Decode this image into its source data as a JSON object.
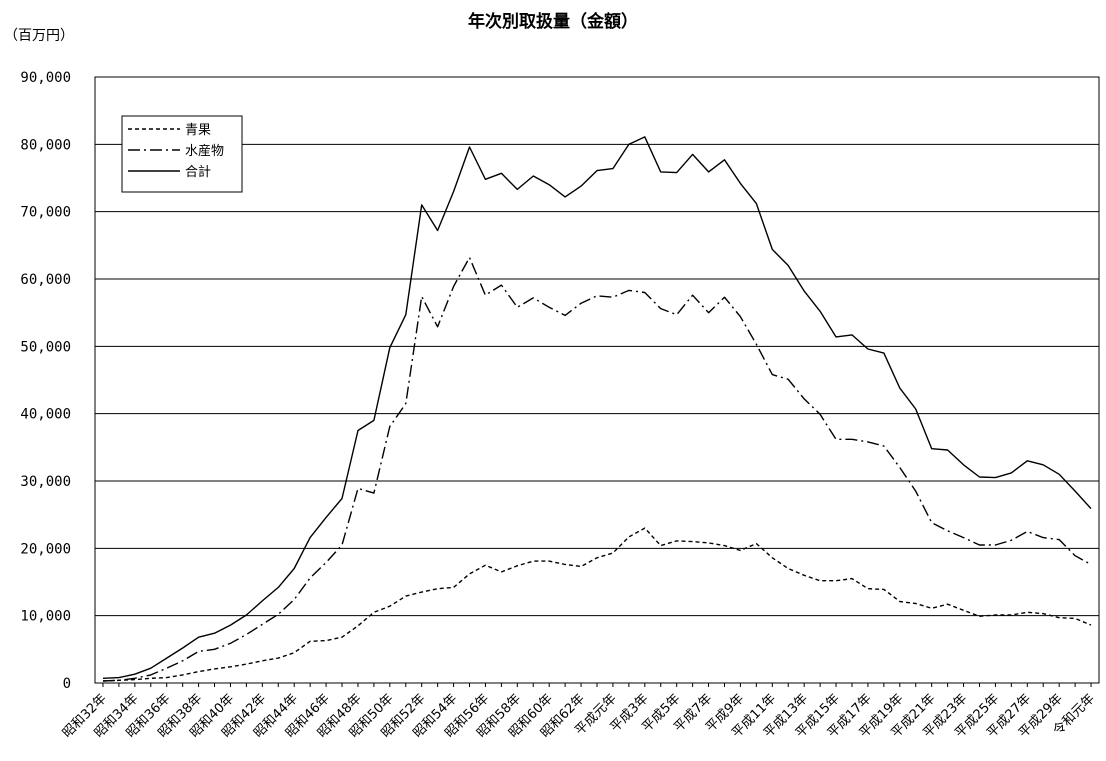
{
  "chart_data": {
    "type": "line",
    "title": "年次別取扱量（金額）",
    "unit_label": "（百万円）",
    "xlabel": "",
    "ylabel": "",
    "ylim": [
      0,
      90000
    ],
    "ytick_values": [
      0,
      10000,
      20000,
      30000,
      40000,
      50000,
      60000,
      70000,
      80000,
      90000
    ],
    "ytick_labels": [
      "0",
      "10,000",
      "20,000",
      "30,000",
      "40,000",
      "50,000",
      "60,000",
      "70,000",
      "80,000",
      "90,000"
    ],
    "grid": true,
    "legend_position": "top-left",
    "categories": [
      "昭和32年",
      "昭和33年",
      "昭和34年",
      "昭和35年",
      "昭和36年",
      "昭和37年",
      "昭和38年",
      "昭和39年",
      "昭和40年",
      "昭和41年",
      "昭和42年",
      "昭和43年",
      "昭和44年",
      "昭和45年",
      "昭和46年",
      "昭和47年",
      "昭和48年",
      "昭和49年",
      "昭和50年",
      "昭和51年",
      "昭和52年",
      "昭和53年",
      "昭和54年",
      "昭和55年",
      "昭和56年",
      "昭和57年",
      "昭和58年",
      "昭和59年",
      "昭和60年",
      "昭和61年",
      "昭和62年",
      "昭和63年",
      "平成元年",
      "平成2年",
      "平成3年",
      "平成4年",
      "平成5年",
      "平成6年",
      "平成7年",
      "平成8年",
      "平成9年",
      "平成10年",
      "平成11年",
      "平成12年",
      "平成13年",
      "平成14年",
      "平成15年",
      "平成16年",
      "平成17年",
      "平成18年",
      "平成19年",
      "平成20年",
      "平成21年",
      "平成22年",
      "平成23年",
      "平成24年",
      "平成25年",
      "平成26年",
      "平成27年",
      "平成28年",
      "平成29年",
      "平成30年",
      "令和元年"
    ],
    "xtick_labels": [
      "昭和32年",
      "",
      "昭和34年",
      "",
      "昭和36年",
      "",
      "昭和38年",
      "",
      "昭和40年",
      "",
      "昭和42年",
      "",
      "昭和44年",
      "",
      "昭和46年",
      "",
      "昭和48年",
      "",
      "昭和50年",
      "",
      "昭和52年",
      "",
      "昭和54年",
      "",
      "昭和56年",
      "",
      "昭和58年",
      "",
      "昭和60年",
      "",
      "昭和62年",
      "",
      "平成元年",
      "",
      "平成3年",
      "",
      "平成5年",
      "",
      "平成7年",
      "",
      "平成9年",
      "",
      "平成11年",
      "",
      "平成13年",
      "",
      "平成15年",
      "",
      "平成17年",
      "",
      "平成19年",
      "",
      "平成21年",
      "",
      "平成23年",
      "",
      "平成25年",
      "",
      "平成27年",
      "",
      "平成29年",
      "",
      "令和元年"
    ],
    "series": [
      {
        "name": "青果",
        "style": "dashed",
        "values": [
          300,
          400,
          500,
          700,
          800,
          1200,
          1700,
          2100,
          2400,
          2800,
          3300,
          3700,
          4500,
          6200,
          6300,
          6800,
          8500,
          10500,
          11400,
          12900,
          13500,
          14000,
          14200,
          16200,
          17500,
          16500,
          17400,
          18100,
          18100,
          17600,
          17300,
          18600,
          19300,
          21700,
          23000,
          20400,
          21100,
          21000,
          20800,
          20400,
          19700,
          20700,
          18600,
          17000,
          16000,
          15200,
          15200,
          15500,
          14000,
          13900,
          12100,
          11800,
          11100,
          11700,
          10800,
          9900,
          10100,
          10100,
          10500,
          10300,
          9700,
          9600,
          8600
        ]
      },
      {
        "name": "水産物",
        "style": "dashdot",
        "values": [
          300,
          400,
          700,
          1200,
          2200,
          3300,
          4700,
          5000,
          5900,
          7200,
          8700,
          10200,
          12400,
          15600,
          17900,
          20500,
          28900,
          28200,
          38100,
          41500,
          57400,
          52900,
          58900,
          63200,
          57600,
          59100,
          55800,
          57200,
          55800,
          54600,
          56400,
          57500,
          57300,
          58300,
          58000,
          55600,
          54700,
          57600,
          55000,
          57300,
          54400,
          50300,
          45800,
          45100,
          42200,
          39900,
          36200,
          36200,
          35800,
          35200,
          32000,
          28500,
          23800,
          22600,
          21600,
          20500,
          20500,
          21200,
          22500,
          21600,
          21300,
          18900,
          17600
        ]
      },
      {
        "name": "合計",
        "style": "solid",
        "values": [
          700,
          800,
          1300,
          2200,
          3700,
          5200,
          6800,
          7400,
          8600,
          10100,
          12200,
          14200,
          17000,
          21600,
          24600,
          27400,
          37500,
          39000,
          49800,
          54700,
          71000,
          67200,
          73000,
          79600,
          74800,
          75700,
          73300,
          75300,
          74000,
          72200,
          73800,
          76100,
          76400,
          80000,
          81100,
          75900,
          75800,
          78500,
          75900,
          77700,
          74200,
          71200,
          64400,
          62000,
          58200,
          55200,
          51400,
          51700,
          49600,
          49000,
          43800,
          40700,
          34800,
          34600,
          32400,
          30600,
          30500,
          31200,
          33000,
          32400,
          31000,
          28500,
          25900
        ]
      }
    ]
  }
}
